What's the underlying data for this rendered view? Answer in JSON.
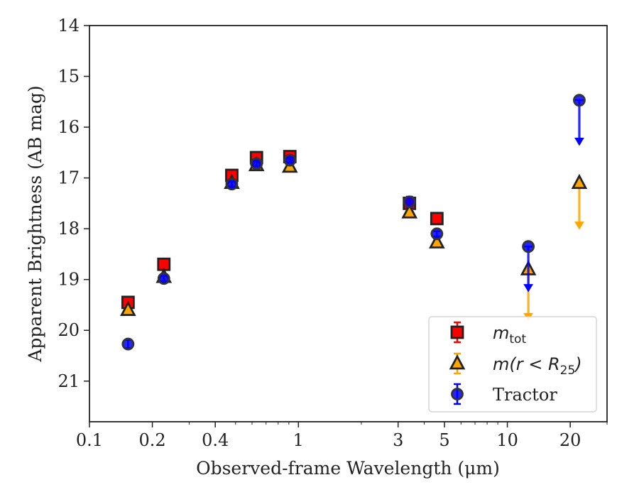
{
  "chart_data": {
    "type": "scatter",
    "xlabel": "Observed-frame Wavelength (μm)",
    "ylabel": "Apparent Brightness (AB mag)",
    "xscale": "log",
    "xlim": [
      0.1,
      30
    ],
    "ylim": [
      21.8,
      14
    ],
    "y_inverted": true,
    "grid": false,
    "legend_position": "lower-right",
    "x_ticks": [
      0.1,
      0.2,
      0.4,
      1,
      3,
      5,
      10,
      20
    ],
    "x_tick_labels": [
      "0.1",
      "0.2",
      "0.4",
      "1",
      "3",
      "5",
      "10",
      "20"
    ],
    "y_ticks": [
      14,
      15,
      16,
      17,
      18,
      19,
      20,
      21
    ],
    "y_tick_labels": [
      "14",
      "15",
      "16",
      "17",
      "18",
      "19",
      "20",
      "21"
    ],
    "series": [
      {
        "name": "m_tot",
        "marker": "square",
        "color": "#ff0000",
        "edge_color": "#222222",
        "points": [
          {
            "x": 0.153,
            "y": 19.45,
            "err": 0.05
          },
          {
            "x": 0.227,
            "y": 18.7,
            "err": 0.05
          },
          {
            "x": 0.48,
            "y": 16.95,
            "err": 0.05
          },
          {
            "x": 0.63,
            "y": 16.6,
            "err": 0.05
          },
          {
            "x": 0.91,
            "y": 16.58,
            "err": 0.05
          },
          {
            "x": 3.4,
            "y": 17.5,
            "err": 0.05
          },
          {
            "x": 4.6,
            "y": 17.8,
            "err": 0.05
          }
        ]
      },
      {
        "name": "m(r < R25)",
        "marker": "triangle",
        "color": "#ffa500",
        "edge_color": "#222222",
        "points": [
          {
            "x": 0.153,
            "y": 19.6,
            "err": 0.05
          },
          {
            "x": 0.227,
            "y": 18.95,
            "err": 0.05
          },
          {
            "x": 0.48,
            "y": 17.1,
            "err": 0.05
          },
          {
            "x": 0.63,
            "y": 16.75,
            "err": 0.05
          },
          {
            "x": 0.91,
            "y": 16.78,
            "err": 0.05
          },
          {
            "x": 3.4,
            "y": 17.68,
            "err": 0.05
          },
          {
            "x": 4.6,
            "y": 18.27,
            "err": 0.05
          },
          {
            "x": 12.6,
            "y": 18.8,
            "upper_limit": true,
            "arrow_to": 19.75
          },
          {
            "x": 22.1,
            "y": 17.1,
            "upper_limit": true,
            "arrow_to": 17.95
          }
        ]
      },
      {
        "name": "Tractor",
        "marker": "circle",
        "color": "#0000ff",
        "edge_color": "#333333",
        "points": [
          {
            "x": 0.153,
            "y": 20.27,
            "err": 0.08
          },
          {
            "x": 0.227,
            "y": 18.98,
            "err": 0.05
          },
          {
            "x": 0.48,
            "y": 17.12,
            "err": 0.05
          },
          {
            "x": 0.63,
            "y": 16.72,
            "err": 0.05
          },
          {
            "x": 0.91,
            "y": 16.65,
            "err": 0.05
          },
          {
            "x": 3.4,
            "y": 17.47,
            "err": 0.1
          },
          {
            "x": 4.6,
            "y": 18.1,
            "err": 0.05
          },
          {
            "x": 12.6,
            "y": 18.35,
            "upper_limit": true,
            "arrow_to": 19.18
          },
          {
            "x": 22.1,
            "y": 15.47,
            "upper_limit": true,
            "arrow_to": 16.3
          }
        ]
      }
    ],
    "legend": {
      "entries": [
        {
          "label": "m",
          "subscript": "tot",
          "italic": true
        },
        {
          "label": "m(r < R",
          "subscript": "25",
          "suffix": ")",
          "italic": true
        },
        {
          "label": "Tractor",
          "italic": false
        }
      ]
    }
  }
}
